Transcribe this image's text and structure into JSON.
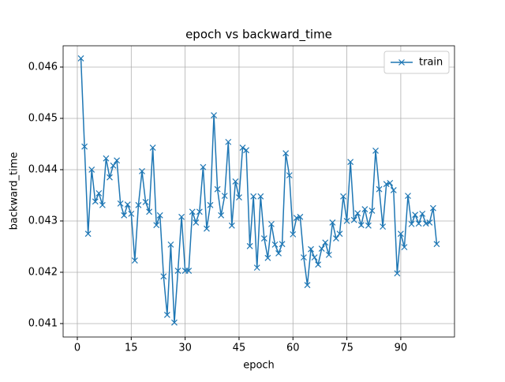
{
  "chart_data": {
    "type": "line",
    "title": "epoch vs backward_time",
    "x_label": "epoch",
    "y_label": "backward_time",
    "x": [
      1,
      2,
      3,
      4,
      5,
      6,
      7,
      8,
      9,
      10,
      11,
      12,
      13,
      14,
      15,
      16,
      17,
      18,
      19,
      20,
      21,
      22,
      23,
      24,
      25,
      26,
      27,
      28,
      29,
      30,
      31,
      32,
      33,
      34,
      35,
      36,
      37,
      38,
      39,
      40,
      41,
      42,
      43,
      44,
      45,
      46,
      47,
      48,
      49,
      50,
      51,
      52,
      53,
      54,
      55,
      56,
      57,
      58,
      59,
      60,
      61,
      62,
      63,
      64,
      65,
      66,
      67,
      68,
      69,
      70,
      71,
      72,
      73,
      74,
      75,
      76,
      77,
      78,
      79,
      80,
      81,
      82,
      83,
      84,
      85,
      86,
      87,
      88,
      89,
      90,
      91,
      92,
      93,
      94,
      95,
      96,
      97,
      98,
      99,
      100
    ],
    "series": [
      {
        "name": "train",
        "color": "#1f77b4",
        "marker": "x",
        "values": [
          0.04617,
          0.04445,
          0.04275,
          0.044,
          0.04338,
          0.04354,
          0.04331,
          0.04422,
          0.04385,
          0.04408,
          0.04418,
          0.04334,
          0.04311,
          0.04332,
          0.04314,
          0.04223,
          0.04331,
          0.04397,
          0.04337,
          0.04318,
          0.04443,
          0.04292,
          0.04311,
          0.04192,
          0.04117,
          0.04254,
          0.04102,
          0.04203,
          0.04308,
          0.04203,
          0.04203,
          0.04318,
          0.04297,
          0.04318,
          0.04405,
          0.04285,
          0.04331,
          0.04506,
          0.04362,
          0.04311,
          0.04349,
          0.04454,
          0.04291,
          0.04377,
          0.04346,
          0.04443,
          0.04438,
          0.04251,
          0.04348,
          0.04209,
          0.04348,
          0.04266,
          0.04228,
          0.04294,
          0.04254,
          0.04237,
          0.04255,
          0.04432,
          0.04389,
          0.04274,
          0.04306,
          0.04308,
          0.04229,
          0.04175,
          0.04245,
          0.04229,
          0.04215,
          0.04246,
          0.04258,
          0.04234,
          0.04297,
          0.04266,
          0.04275,
          0.04348,
          0.043,
          0.04415,
          0.04302,
          0.04315,
          0.04292,
          0.04323,
          0.04291,
          0.0432,
          0.04437,
          0.04362,
          0.04289,
          0.04372,
          0.04374,
          0.0436,
          0.04198,
          0.04275,
          0.04249,
          0.04349,
          0.04294,
          0.04312,
          0.04295,
          0.04314,
          0.04295,
          0.04297,
          0.04325,
          0.04255
        ]
      }
    ],
    "xlim": [
      -3.95,
      104.95
    ],
    "xticks": [
      0,
      15,
      30,
      45,
      60,
      75,
      90
    ],
    "ylim": [
      0.040738,
      0.046415
    ],
    "yticks": [
      0.041,
      0.042,
      0.043,
      0.044,
      0.045,
      0.046
    ],
    "grid": true,
    "legend": "upper right"
  }
}
